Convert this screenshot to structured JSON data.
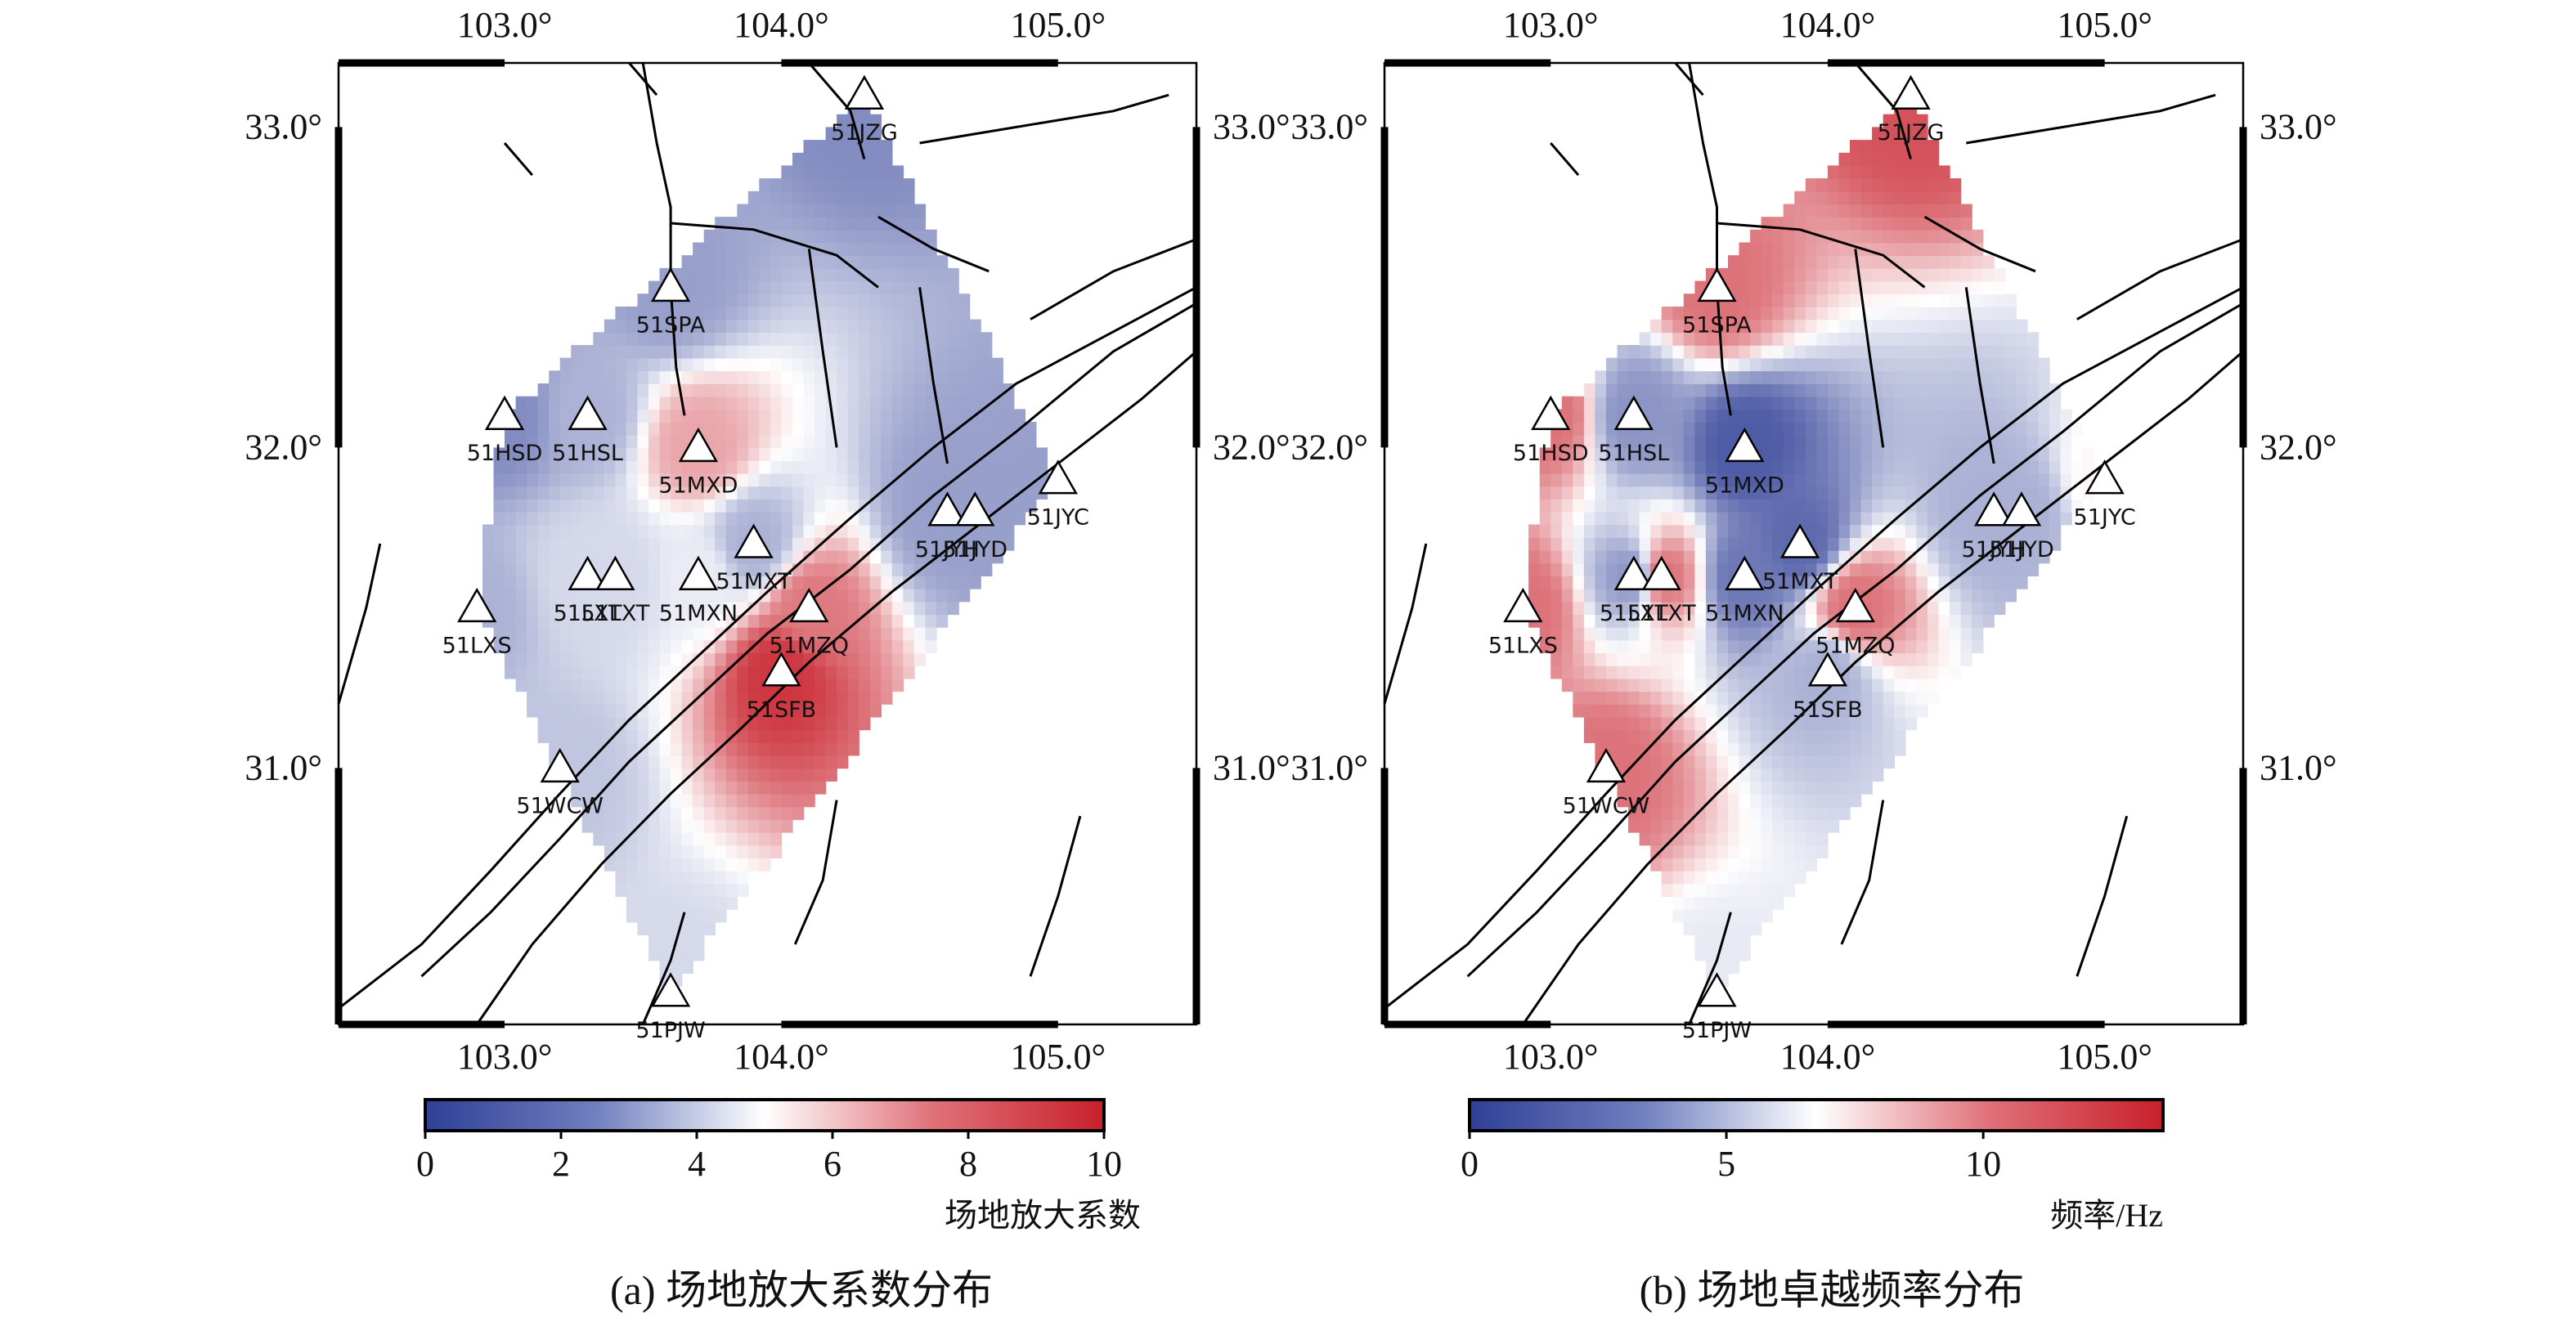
{
  "chart_data": [
    {
      "type": "heatmap",
      "panel": "a",
      "caption": "(a) 场地放大系数分布",
      "colorbar": {
        "min": 0,
        "max": 10,
        "ticks": [
          0,
          2,
          4,
          6,
          8,
          10
        ],
        "unit": "场地放大系数"
      },
      "xlim": [
        102.4,
        105.5
      ],
      "ylim": [
        30.2,
        33.2
      ],
      "x_ticks": [
        103.0,
        104.0,
        105.0
      ],
      "y_ticks": [
        31.0,
        32.0,
        33.0
      ],
      "x_tick_labels": [
        "103.0°",
        "104.0°",
        "105.0°"
      ],
      "y_tick_labels": [
        "31.0°",
        "32.0°",
        "33.0°"
      ],
      "stations": [
        {
          "name": "51JZG",
          "lon": 104.3,
          "lat": 33.1,
          "value": 2.0
        },
        {
          "name": "51SPA",
          "lon": 103.6,
          "lat": 32.5,
          "value": 2.5
        },
        {
          "name": "51HSL",
          "lon": 103.3,
          "lat": 32.1,
          "value": 3.0
        },
        {
          "name": "51HSD",
          "lon": 103.0,
          "lat": 32.1,
          "value": 2.0
        },
        {
          "name": "51MXD",
          "lon": 103.7,
          "lat": 32.0,
          "value": 7.0
        },
        {
          "name": "51JYH",
          "lon": 104.6,
          "lat": 31.8,
          "value": 2.5
        },
        {
          "name": "51JYC",
          "lon": 105.0,
          "lat": 31.9,
          "value": 2.5
        },
        {
          "name": "51JYD",
          "lon": 104.7,
          "lat": 31.8,
          "value": 2.5
        },
        {
          "name": "51LXT",
          "lon": 103.3,
          "lat": 31.6,
          "value": 4.0
        },
        {
          "name": "51LXT",
          "lon": 103.4,
          "lat": 31.6,
          "value": 4.0
        },
        {
          "name": "51MXT",
          "lon": 103.9,
          "lat": 31.7,
          "value": 3.0
        },
        {
          "name": "51MXN",
          "lon": 103.7,
          "lat": 31.6,
          "value": 4.5
        },
        {
          "name": "51MZQ",
          "lon": 104.1,
          "lat": 31.5,
          "value": 8.0
        },
        {
          "name": "51LXS",
          "lon": 102.9,
          "lat": 31.5,
          "value": 3.0
        },
        {
          "name": "51SFB",
          "lon": 104.0,
          "lat": 31.3,
          "value": 9.5
        },
        {
          "name": "51WCW",
          "lon": 103.2,
          "lat": 31.0,
          "value": 3.5
        },
        {
          "name": "51PJW",
          "lon": 103.6,
          "lat": 30.3,
          "value": 4.0
        }
      ]
    },
    {
      "type": "heatmap",
      "panel": "b",
      "caption": "(b) 场地卓越频率分布",
      "colorbar": {
        "min": 0,
        "max": 13.5,
        "ticks": [
          0,
          5,
          10
        ],
        "unit": "频率/Hz"
      },
      "xlim": [
        102.4,
        105.5
      ],
      "ylim": [
        30.2,
        33.2
      ],
      "x_ticks": [
        103.0,
        104.0,
        105.0
      ],
      "y_ticks": [
        31.0,
        32.0,
        33.0
      ],
      "x_tick_labels": [
        "103.0°",
        "104.0°",
        "105.0°"
      ],
      "y_tick_labels": [
        "31.0°",
        "32.0°",
        "33.0°"
      ],
      "stations": [
        {
          "name": "51JZG",
          "lon": 104.3,
          "lat": 33.1,
          "value": 12.0
        },
        {
          "name": "51SPA",
          "lon": 103.6,
          "lat": 32.5,
          "value": 11.0
        },
        {
          "name": "51HSL",
          "lon": 103.3,
          "lat": 32.1,
          "value": 3.0
        },
        {
          "name": "51HSD",
          "lon": 103.0,
          "lat": 32.1,
          "value": 11.0
        },
        {
          "name": "51MXD",
          "lon": 103.7,
          "lat": 32.0,
          "value": 1.0
        },
        {
          "name": "51JYH",
          "lon": 104.6,
          "lat": 31.8,
          "value": 4.0
        },
        {
          "name": "51JYC",
          "lon": 105.0,
          "lat": 31.9,
          "value": 7.0
        },
        {
          "name": "51JYD",
          "lon": 104.7,
          "lat": 31.8,
          "value": 4.0
        },
        {
          "name": "51LXT",
          "lon": 103.3,
          "lat": 31.6,
          "value": 3.0
        },
        {
          "name": "51LXT",
          "lon": 103.4,
          "lat": 31.6,
          "value": 11.0
        },
        {
          "name": "51MXT",
          "lon": 103.9,
          "lat": 31.7,
          "value": 1.5
        },
        {
          "name": "51MXN",
          "lon": 103.7,
          "lat": 31.6,
          "value": 2.0
        },
        {
          "name": "51MZQ",
          "lon": 104.1,
          "lat": 31.5,
          "value": 11.0
        },
        {
          "name": "51LXS",
          "lon": 102.9,
          "lat": 31.5,
          "value": 11.0
        },
        {
          "name": "51SFB",
          "lon": 104.0,
          "lat": 31.3,
          "value": 4.0
        },
        {
          "name": "51WCW",
          "lon": 103.2,
          "lat": 31.0,
          "value": 11.0
        },
        {
          "name": "51PJW",
          "lon": 103.6,
          "lat": 30.3,
          "value": 6.0
        }
      ]
    }
  ],
  "colors": {
    "low": "#2f3f96",
    "mid": "#ffffff",
    "high": "#c8202b",
    "frame": "#000000",
    "fault": "#000000"
  }
}
